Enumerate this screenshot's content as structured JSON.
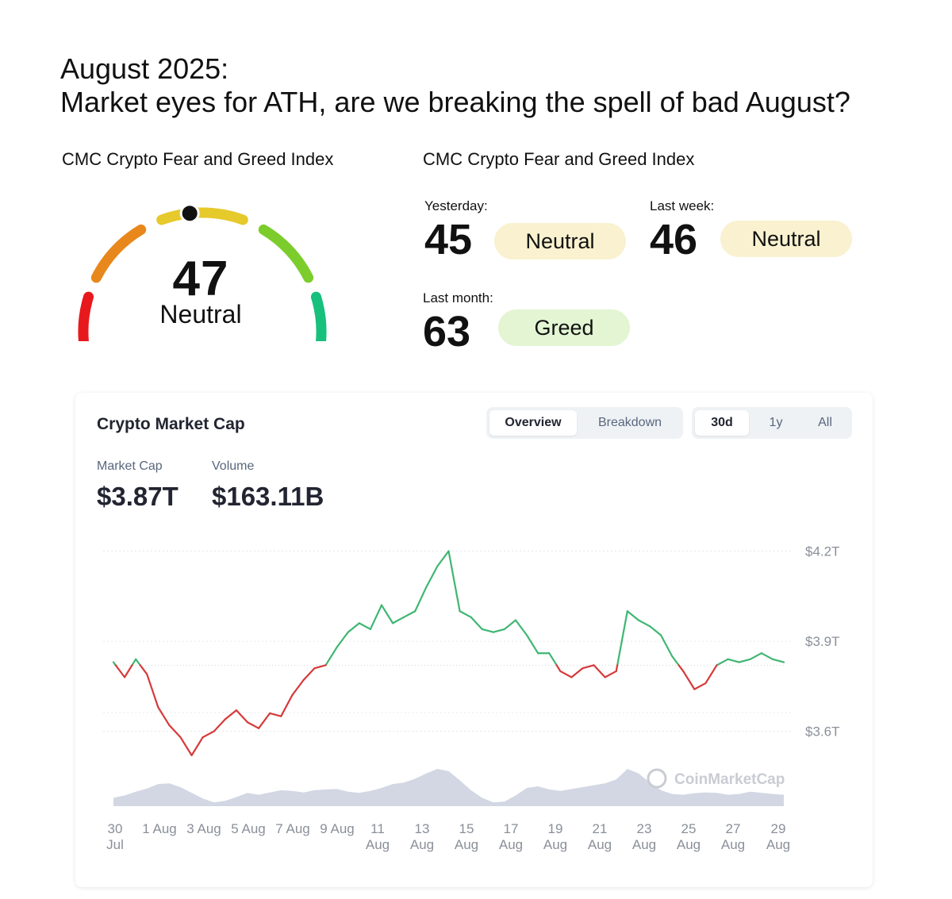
{
  "headline": {
    "line1": "August 2025:",
    "line2": "Market eyes for ATH, are we breaking the spell of bad August?"
  },
  "fear_greed": {
    "title_left": "CMC Crypto Fear and Greed Index",
    "title_right": "CMC Crypto Fear and Greed Index",
    "current": {
      "value": "47",
      "label": "Neutral",
      "fraction": 0.47
    },
    "gauge_colors": [
      "#e8191c",
      "#e8871b",
      "#e6c92b",
      "#7ccd2c",
      "#18c07d"
    ],
    "yesterday": {
      "label": "Yesterday:",
      "value": "45",
      "status": "Neutral"
    },
    "last_week": {
      "label": "Last week:",
      "value": "46",
      "status": "Neutral"
    },
    "last_month": {
      "label": "Last month:",
      "value": "63",
      "status": "Greed"
    }
  },
  "market_card": {
    "title": "Crypto Market Cap",
    "tabs": [
      "Overview",
      "Breakdown"
    ],
    "active_tab": "Overview",
    "ranges": [
      "30d",
      "1y",
      "All"
    ],
    "active_range": "30d",
    "market_cap_label": "Market Cap",
    "market_cap_value": "$3.87T",
    "volume_label": "Volume",
    "volume_value": "$163.11B",
    "watermark": "CoinMarketCap"
  },
  "chart_data": {
    "type": "line",
    "title": "Crypto Market Cap",
    "unit": "$T",
    "baseline": 3.82,
    "colors": {
      "above": "#3fb672",
      "below": "#d63a3a",
      "volume": "#d2d7e3"
    },
    "ylim": [
      3.48,
      4.22
    ],
    "yticks": [
      3.6,
      3.9,
      4.2
    ],
    "ytick_labels": [
      "$3.6T",
      "$3.9T",
      "$4.2T"
    ],
    "xtick_labels": [
      [
        "30",
        "Jul"
      ],
      [
        "1 Aug"
      ],
      [
        "3 Aug"
      ],
      [
        "5 Aug"
      ],
      [
        "7 Aug"
      ],
      [
        "9 Aug"
      ],
      [
        "11",
        "Aug"
      ],
      [
        "13",
        "Aug"
      ],
      [
        "15",
        "Aug"
      ],
      [
        "17",
        "Aug"
      ],
      [
        "19",
        "Aug"
      ],
      [
        "21",
        "Aug"
      ],
      [
        "23",
        "Aug"
      ],
      [
        "25",
        "Aug"
      ],
      [
        "27",
        "Aug"
      ],
      [
        "29",
        "Aug"
      ]
    ],
    "x_days": [
      0,
      0.5,
      1,
      1.5,
      2,
      2.5,
      3,
      3.5,
      4,
      4.5,
      5,
      5.5,
      6,
      6.5,
      7,
      7.5,
      8,
      8.5,
      9,
      9.5,
      10,
      10.5,
      11,
      11.5,
      12,
      12.5,
      13,
      13.5,
      14,
      14.5,
      15,
      15.5,
      16,
      16.5,
      17,
      17.5,
      18,
      18.5,
      19,
      19.5,
      20,
      20.5,
      21,
      21.5,
      22,
      22.5,
      23,
      23.5,
      24,
      24.5,
      25,
      25.5,
      26,
      26.5,
      27,
      27.5,
      28,
      28.5,
      29,
      29.5,
      30
    ],
    "market_cap": [
      3.83,
      3.78,
      3.84,
      3.79,
      3.68,
      3.62,
      3.58,
      3.52,
      3.58,
      3.6,
      3.64,
      3.67,
      3.63,
      3.61,
      3.66,
      3.65,
      3.72,
      3.77,
      3.81,
      3.82,
      3.88,
      3.93,
      3.96,
      3.94,
      4.02,
      3.96,
      3.98,
      4.0,
      4.08,
      4.15,
      4.2,
      4.0,
      3.98,
      3.94,
      3.93,
      3.94,
      3.97,
      3.92,
      3.86,
      3.86,
      3.8,
      3.78,
      3.81,
      3.82,
      3.78,
      3.8,
      4.0,
      3.97,
      3.95,
      3.92,
      3.85,
      3.8,
      3.74,
      3.76,
      3.82,
      3.84,
      3.83,
      3.84,
      3.86,
      3.84,
      3.83
    ],
    "volume": [
      0.22,
      0.28,
      0.38,
      0.46,
      0.58,
      0.6,
      0.5,
      0.35,
      0.2,
      0.1,
      0.14,
      0.24,
      0.35,
      0.3,
      0.36,
      0.42,
      0.4,
      0.36,
      0.42,
      0.44,
      0.45,
      0.38,
      0.35,
      0.4,
      0.48,
      0.58,
      0.62,
      0.72,
      0.86,
      0.98,
      0.92,
      0.68,
      0.42,
      0.22,
      0.1,
      0.12,
      0.28,
      0.48,
      0.52,
      0.44,
      0.4,
      0.45,
      0.5,
      0.55,
      0.6,
      0.7,
      0.98,
      0.86,
      0.62,
      0.42,
      0.32,
      0.3,
      0.34,
      0.36,
      0.35,
      0.3,
      0.32,
      0.38,
      0.35,
      0.32,
      0.3
    ]
  }
}
